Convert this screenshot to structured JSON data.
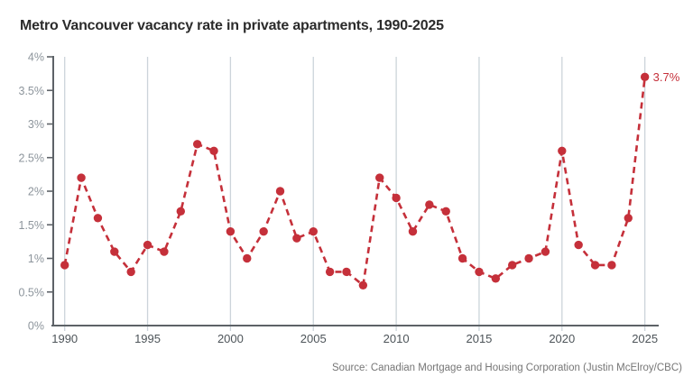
{
  "title": "Metro Vancouver vacancy rate in private apartments, 1990-2025",
  "source": "Source: Canadian Mortgage and Housing Corporation (Justin McElroy/CBC)",
  "colors": {
    "line": "#c5303a",
    "marker": "#c5303a",
    "annotation": "#c5303a",
    "gridline": "#ccd4da",
    "axis": "#5d6267",
    "y_tick_label": "#8d959c",
    "x_tick_label": "#4d5459",
    "title": "#2b2b2b",
    "source": "#767676",
    "background": "#ffffff"
  },
  "chart_data": {
    "type": "line",
    "title": "Metro Vancouver vacancy rate in private apartments, 1990-2025",
    "x": [
      1990,
      1991,
      1992,
      1993,
      1994,
      1995,
      1996,
      1997,
      1998,
      1999,
      2000,
      2001,
      2002,
      2003,
      2004,
      2005,
      2006,
      2007,
      2008,
      2009,
      2010,
      2011,
      2012,
      2013,
      2014,
      2015,
      2016,
      2017,
      2018,
      2019,
      2020,
      2021,
      2022,
      2023,
      2024,
      2025
    ],
    "values": [
      0.9,
      2.2,
      1.6,
      1.1,
      0.8,
      1.2,
      1.1,
      1.7,
      2.7,
      2.6,
      1.4,
      1.0,
      1.4,
      2.0,
      1.3,
      1.4,
      0.8,
      0.8,
      0.6,
      2.2,
      1.9,
      1.4,
      1.8,
      1.7,
      1.0,
      0.8,
      0.7,
      0.9,
      1.0,
      1.1,
      2.6,
      1.2,
      0.9,
      0.9,
      1.6,
      3.7
    ],
    "xlabel": "",
    "ylabel": "",
    "xlim": [
      1990,
      2025
    ],
    "ylim": [
      0,
      4
    ],
    "x_tick_labels": [
      "1990",
      "1995",
      "2000",
      "2005",
      "2010",
      "2015",
      "2020",
      "2025"
    ],
    "x_tick_values": [
      1990,
      1995,
      2000,
      2005,
      2010,
      2015,
      2020,
      2025
    ],
    "y_tick_labels": [
      "0%",
      "0.5%",
      "1%",
      "1.5%",
      "2%",
      "2.5%",
      "3%",
      "3.5%",
      "4%"
    ],
    "y_tick_values": [
      0,
      0.5,
      1,
      1.5,
      2,
      2.5,
      3,
      3.5,
      4
    ],
    "line_style": "dashed",
    "marker": "circle",
    "grid": "vertical-only",
    "legend": "none",
    "annotation": {
      "x": 2025,
      "y": 3.7,
      "label": "3.7%"
    }
  }
}
